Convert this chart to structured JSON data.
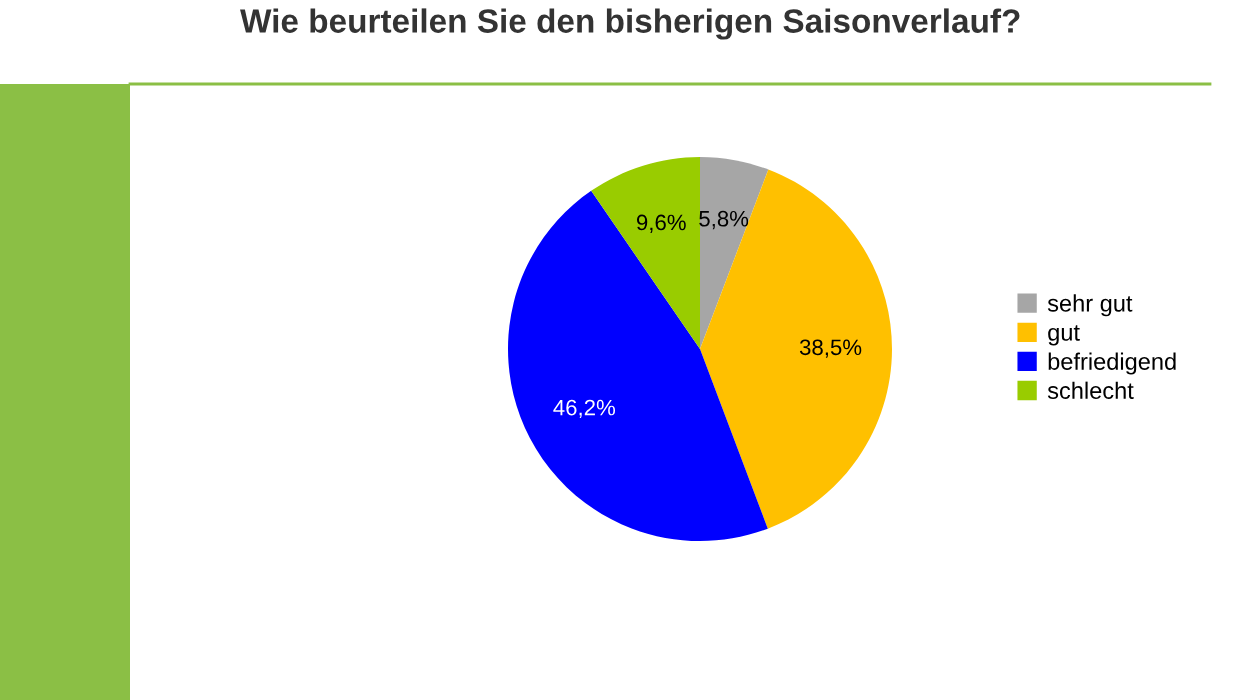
{
  "chart_data": {
    "type": "pie",
    "title": "Wie beurteilen Sie den bisherigen Saisonverlauf?",
    "categories": [
      "sehr gut",
      "gut",
      "befriedigend",
      "schlecht"
    ],
    "values": [
      5.8,
      38.5,
      46.2,
      9.6
    ],
    "value_labels": [
      "5,8%",
      "38,5%",
      "46,2%",
      "9,6%"
    ],
    "colors": [
      "#a6a6a6",
      "#ffc000",
      "#0000ff",
      "#99cc00"
    ],
    "legend": "right"
  }
}
